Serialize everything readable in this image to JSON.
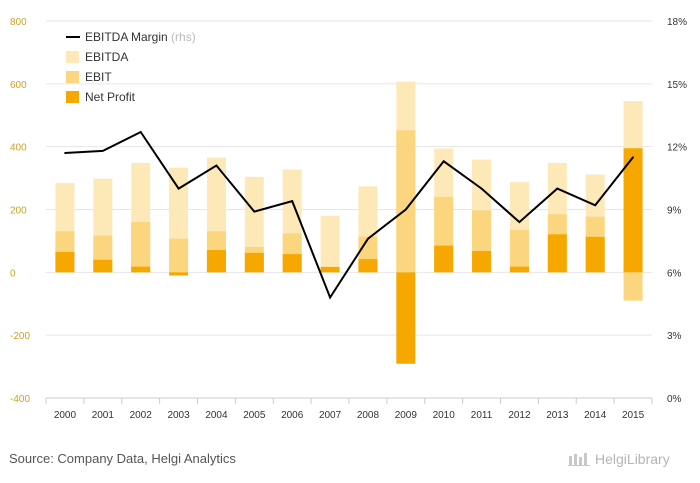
{
  "chart_data": {
    "type": "bar",
    "categories": [
      "2000",
      "2001",
      "2002",
      "2003",
      "2004",
      "2005",
      "2006",
      "2007",
      "2008",
      "2009",
      "2010",
      "2011",
      "2012",
      "2013",
      "2014",
      "2015"
    ],
    "series": [
      {
        "name": "EBITDA",
        "axis": "left",
        "color": "#fde9b8",
        "values": [
          284,
          298,
          348,
          333,
          365,
          304,
          327,
          180,
          274,
          607,
          394,
          359,
          287,
          348,
          311,
          545
        ]
      },
      {
        "name": "EBIT",
        "axis": "left",
        "color": "#fcd57f",
        "values": [
          131,
          117,
          160,
          107,
          131,
          81,
          124,
          18,
          114,
          452,
          240,
          197,
          135,
          185,
          177,
          -90
        ]
      },
      {
        "name": "Net Profit",
        "axis": "left",
        "color": "#f7a800",
        "values": [
          65,
          40,
          18,
          -10,
          71,
          62,
          58,
          17,
          42,
          -291,
          85,
          68,
          18,
          121,
          113,
          395
        ]
      },
      {
        "name": "EBITDA Margin",
        "axis": "right",
        "type": "line",
        "color": "#000000",
        "values": [
          11.7,
          11.8,
          12.7,
          10.0,
          11.1,
          8.9,
          9.4,
          4.8,
          7.6,
          9.0,
          11.3,
          10.0,
          8.4,
          10.0,
          9.2,
          11.5
        ]
      }
    ],
    "legend": [
      {
        "label": "EBITDA Margin",
        "suffix": "(rhs)",
        "kind": "line",
        "color": "#000000"
      },
      {
        "label": "EBITDA",
        "kind": "box",
        "color": "#fde9b8"
      },
      {
        "label": "EBIT",
        "kind": "box",
        "color": "#fcd57f"
      },
      {
        "label": "Net Profit",
        "kind": "box",
        "color": "#f7a800"
      }
    ],
    "ylim": [
      -400,
      800
    ],
    "yticks": [
      -400,
      -200,
      0,
      200,
      400,
      600,
      800
    ],
    "y2lim": [
      0,
      18
    ],
    "y2ticks": [
      "0%",
      "3%",
      "6%",
      "9%",
      "12%",
      "15%",
      "18%"
    ],
    "grid": true,
    "legend_position": "top-left"
  },
  "footer": {
    "source": "Source: Company Data, Helgi Analytics",
    "logo_text": "HelgiLibrary"
  }
}
